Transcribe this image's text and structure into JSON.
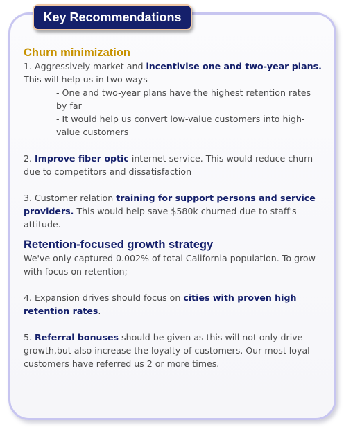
{
  "title": "Key Recommendations",
  "section1": {
    "heading": "Churn minimization",
    "item1": {
      "pre": "1. Aggressively market and ",
      "highlight": "incentivise one and two-year plans.",
      "post": "This will help us in two ways",
      "sub1": "- One and two-year plans have the highest retention rates by far",
      "sub2": "- It would help us convert low-value customers into high-value customers"
    },
    "item2": {
      "pre": "2. ",
      "highlight": "Improve fiber optic",
      "post": " internet service. This would reduce churn due to competitors and dissatisfaction"
    },
    "item3": {
      "pre": "3. Customer relation ",
      "highlight": "training for support persons and service providers.",
      "post": " This would help save $580k churned due to staff's attitude."
    }
  },
  "section2": {
    "heading": "Retention-focused growth strategy",
    "intro": "We've only captured 0.002% of total California population. To grow with focus on retention;",
    "item4": {
      "pre": "4. Expansion drives should focus on ",
      "highlight": "cities with proven high retention rates",
      "post": "."
    },
    "item5": {
      "pre": "5. ",
      "highlight": "Referral bonuses",
      "post": " should be given as this will not only drive growth,but  also increase the loyalty of customers. Our most loyal customers have referred  us 2 or more times."
    }
  },
  "colors": {
    "badge_bg": "#15206b",
    "churn_heading": "#c79200",
    "highlight": "#15206b",
    "body_text": "#4a4a4a",
    "card_border": "#c7c5f0"
  }
}
